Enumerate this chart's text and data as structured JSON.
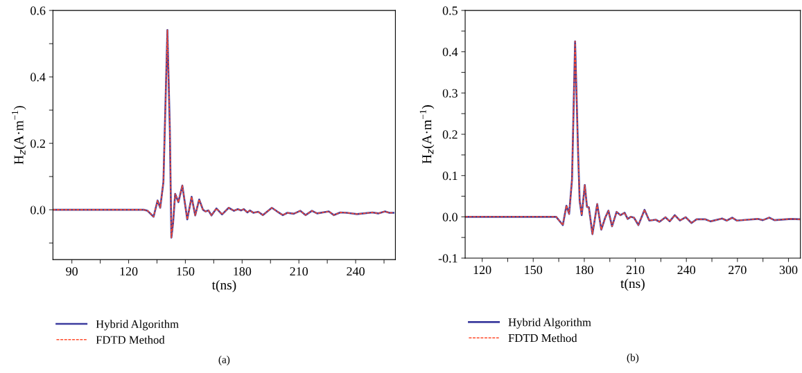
{
  "chart_data": [
    {
      "type": "line",
      "title": "(a)",
      "xlabel": "t(ns)",
      "ylabel": "H$_{z}$(A·m$^{−1}$)",
      "legend": "bottom",
      "grid": false,
      "xlim": [
        80,
        261
      ],
      "ylim": [
        -0.15,
        0.6
      ],
      "xticks": [
        90,
        {
          "value": 105,
          "label": null
        },
        120,
        {
          "value": 135,
          "label": null
        },
        150,
        {
          "value": 165,
          "label": null
        },
        180,
        {
          "value": 195,
          "label": null
        },
        210,
        {
          "value": 225,
          "label": null
        },
        240,
        {
          "value": 255,
          "label": null
        }
      ],
      "yticks": [
        {
          "value": -0.1,
          "label": null
        },
        {
          "value": 0.0,
          "label": "0.0"
        },
        {
          "value": 0.1,
          "label": null
        },
        0.2,
        {
          "value": 0.3,
          "label": null
        },
        0.4,
        {
          "value": 0.5,
          "label": null
        },
        0.6
      ],
      "series": [
        {
          "name": "Hybrid Algorithm",
          "color": "#3b3b9e",
          "line_style": "solid",
          "x": [
            80,
            128,
            130,
            133.2,
            135.3,
            136.7,
            138.4,
            140.5,
            141.8,
            142.6,
            143.5,
            144.6,
            146.3,
            148.4,
            151,
            153.3,
            155.2,
            157.3,
            159.3,
            160.7,
            162.2,
            163.8,
            166.4,
            169.4,
            172.9,
            175.7,
            177.7,
            179.4,
            180.9,
            182.8,
            184.1,
            185.9,
            188.5,
            191,
            195.7,
            198.5,
            201.5,
            203.9,
            207.3,
            210.7,
            213.5,
            216.9,
            219.6,
            225.8,
            228.5,
            231.9,
            235.3,
            240.7,
            248.9,
            251.9,
            255.5,
            257.8,
            260
          ],
          "values": [
            0,
            0,
            -0.003,
            -0.021,
            0.028,
            0.006,
            0.084,
            0.541,
            0.24,
            -0.084,
            -0.04,
            0.048,
            0.023,
            0.073,
            -0.029,
            0.039,
            -0.017,
            0.031,
            0,
            -0.005,
            -0.002,
            -0.017,
            0.004,
            -0.014,
            0.006,
            -0.003,
            0.002,
            -0.002,
            0.002,
            -0.008,
            -0.002,
            -0.009,
            -0.006,
            -0.016,
            0.006,
            -0.005,
            -0.016,
            -0.009,
            -0.012,
            -0.003,
            -0.016,
            -0.003,
            -0.011,
            -0.005,
            -0.016,
            -0.008,
            -0.009,
            -0.013,
            -0.008,
            -0.011,
            -0.005,
            -0.009,
            -0.009
          ]
        },
        {
          "name": "FDTD Method",
          "color": "#ff4b2b",
          "line_style": "dashed",
          "x": [
            80,
            128,
            130,
            133.2,
            135.3,
            136.7,
            138.4,
            140.5,
            141.8,
            142.6,
            143.5,
            144.6,
            146.3,
            148.4,
            151,
            153.3,
            155.2,
            157.3,
            159.3,
            160.7,
            162.2,
            163.8,
            166.4,
            169.4,
            172.9,
            175.7,
            177.7,
            179.4,
            180.9,
            182.8,
            184.1,
            185.9,
            188.5,
            191,
            195.7,
            198.5,
            201.5,
            203.9,
            207.3,
            210.7,
            213.5,
            216.9,
            219.6,
            225.8,
            228.5,
            231.9,
            235.3,
            240.7,
            248.9,
            251.9,
            255.5,
            257.8,
            260
          ],
          "values": [
            0,
            0,
            -0.003,
            -0.021,
            0.028,
            0.006,
            0.084,
            0.541,
            0.24,
            -0.084,
            -0.04,
            0.048,
            0.023,
            0.073,
            -0.029,
            0.039,
            -0.017,
            0.031,
            0,
            -0.005,
            -0.002,
            -0.017,
            0.004,
            -0.014,
            0.006,
            -0.003,
            0.002,
            -0.002,
            0.002,
            -0.008,
            -0.002,
            -0.009,
            -0.006,
            -0.016,
            0.006,
            -0.005,
            -0.016,
            -0.009,
            -0.012,
            -0.003,
            -0.016,
            -0.003,
            -0.011,
            -0.005,
            -0.016,
            -0.008,
            -0.009,
            -0.013,
            -0.008,
            -0.011,
            -0.005,
            -0.009,
            -0.009
          ]
        }
      ]
    },
    {
      "type": "line",
      "title": "(b)",
      "xlabel": "t(ns)",
      "ylabel": "H$_{z}$(A·m$^{−1}$)",
      "legend": "bottom",
      "grid": false,
      "xlim": [
        110,
        307
      ],
      "ylim": [
        -0.1,
        0.5
      ],
      "xticks": [
        120,
        {
          "value": 135,
          "label": null
        },
        150,
        {
          "value": 165,
          "label": null
        },
        180,
        {
          "value": 195,
          "label": null
        },
        210,
        {
          "value": 225,
          "label": null
        },
        240,
        {
          "value": 255,
          "label": null
        },
        270,
        {
          "value": 285,
          "label": null
        },
        300
      ],
      "yticks": [
        {
          "value": -0.1,
          "label": "-0.1"
        },
        {
          "value": -0.05,
          "label": null
        },
        {
          "value": 0.0,
          "label": "0.0"
        },
        {
          "value": 0.05,
          "label": null
        },
        0.1,
        {
          "value": 0.15,
          "label": null
        },
        0.2,
        {
          "value": 0.25,
          "label": null
        },
        0.3,
        {
          "value": 0.35,
          "label": null
        },
        0.4,
        {
          "value": 0.45,
          "label": null
        },
        0.5
      ],
      "series": [
        {
          "name": "Hybrid Algorithm",
          "color": "#3b3b9e",
          "line_style": "solid",
          "x": [
            110,
            163.5,
            167.4,
            169.5,
            171.1,
            172.8,
            174.6,
            176.4,
            177.3,
            178.5,
            180.3,
            181.6,
            182.7,
            184.8,
            187.6,
            190,
            192.3,
            194.2,
            196.3,
            199,
            201.3,
            203.7,
            205.5,
            207.3,
            209.2,
            211.8,
            215.4,
            218.2,
            222,
            224.2,
            227.7,
            230.2,
            233.2,
            236.2,
            239.6,
            243,
            246,
            251.2,
            254.2,
            261,
            263.7,
            267,
            269.6,
            275.9,
            281.9,
            284.9,
            288.7,
            291.7,
            301.4,
            307
          ],
          "values": [
            0,
            0,
            -0.02,
            0.027,
            0.007,
            0.091,
            0.425,
            0.152,
            0.038,
            0.004,
            0.077,
            0.024,
            0.023,
            -0.042,
            0.031,
            -0.031,
            -0.002,
            0.015,
            -0.023,
            0.012,
            0.004,
            0.01,
            -0.005,
            0,
            -0.002,
            -0.02,
            0.017,
            -0.009,
            -0.007,
            -0.012,
            -0.001,
            -0.011,
            0.004,
            -0.009,
            -0.001,
            -0.015,
            -0.006,
            -0.006,
            -0.011,
            -0.004,
            -0.009,
            -0.002,
            -0.009,
            -0.007,
            -0.005,
            -0.008,
            -0.002,
            -0.008,
            -0.005,
            -0.006
          ]
        },
        {
          "name": "FDTD Method",
          "color": "#ff4b2b",
          "line_style": "dashed",
          "x": [
            110,
            163.5,
            167.4,
            169.5,
            171.1,
            172.8,
            174.6,
            176.4,
            177.3,
            178.5,
            180.3,
            181.6,
            182.7,
            184.8,
            187.6,
            190,
            192.3,
            194.2,
            196.3,
            199,
            201.3,
            203.7,
            205.5,
            207.3,
            209.2,
            211.8,
            215.4,
            218.2,
            222,
            224.2,
            227.7,
            230.2,
            233.2,
            236.2,
            239.6,
            243,
            246,
            251.2,
            254.2,
            261,
            263.7,
            267,
            269.6,
            275.9,
            281.9,
            284.9,
            288.7,
            291.7,
            301.4,
            307
          ],
          "values": [
            0,
            0,
            -0.02,
            0.027,
            0.007,
            0.091,
            0.425,
            0.152,
            0.038,
            0.004,
            0.077,
            0.024,
            0.023,
            -0.042,
            0.031,
            -0.031,
            -0.002,
            0.015,
            -0.023,
            0.012,
            0.004,
            0.01,
            -0.005,
            0,
            -0.002,
            -0.02,
            0.017,
            -0.009,
            -0.007,
            -0.012,
            -0.001,
            -0.011,
            0.004,
            -0.009,
            -0.001,
            -0.015,
            -0.006,
            -0.006,
            -0.011,
            -0.004,
            -0.009,
            -0.002,
            -0.009,
            -0.007,
            -0.005,
            -0.008,
            -0.002,
            -0.008,
            -0.005,
            -0.006
          ]
        }
      ]
    }
  ]
}
